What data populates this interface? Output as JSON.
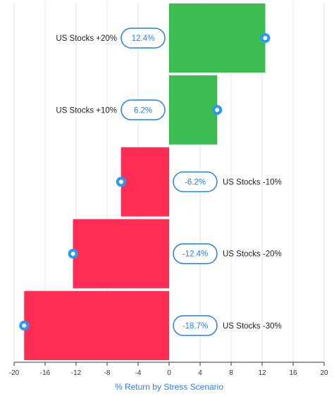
{
  "chart_data": {
    "type": "bar",
    "orientation": "horizontal",
    "categories": [
      "US Stocks +20%",
      "US Stocks +10%",
      "US Stocks -10%",
      "US Stocks -20%",
      "US Stocks -30%"
    ],
    "values": [
      12.4,
      6.2,
      -6.2,
      -12.4,
      -18.7
    ],
    "value_labels": [
      "12.4%",
      "6.2%",
      "-6.2%",
      "-12.4%",
      "-18.7%"
    ],
    "xlabel": "% Return by Stress Scenario",
    "xlim": [
      -20,
      20
    ],
    "xticks": [
      -20,
      -16,
      -12,
      -8,
      -4,
      0,
      4,
      8,
      12,
      16,
      20
    ],
    "grid": true,
    "colors": {
      "positive": "#3cbd52",
      "negative": "#ff2d55",
      "label": "#2a7de1",
      "marker": "#2a9bea"
    }
  }
}
